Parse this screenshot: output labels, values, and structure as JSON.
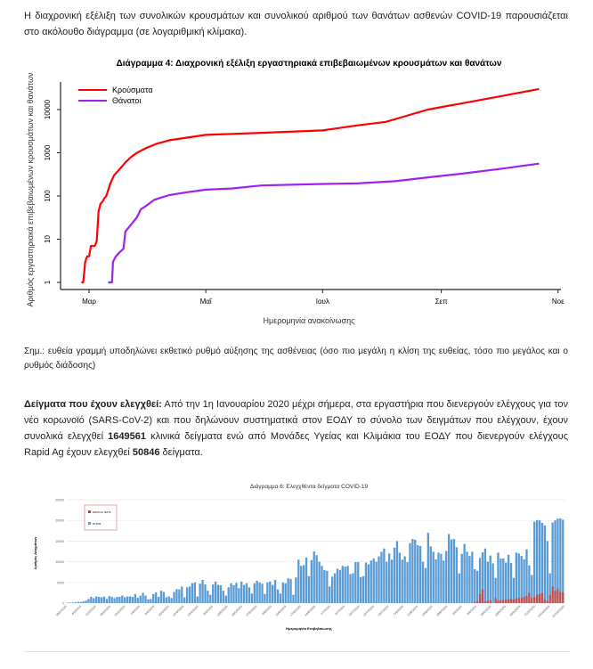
{
  "intro_text": "Η διαχρονική εξέλιξη των συνολικών κρουσμάτων και συνολικού αριθμού των θανάτων ασθενών COVID-19 παρουσιάζεται στο ακόλουθο διάγραμμα (σε λογαριθμική κλίμακα).",
  "note_text": "Σημ.: ευθεία γραμμή υποδηλώνει εκθετικό ρυθμό αύξησης της ασθένειας (όσο πιο μεγάλη η κλίση της ευθείας, τόσο πιο μεγάλος και ο ρυθμός διάδοσης)",
  "samples": {
    "heading": "Δείγματα που έχουν ελεγχθεί:",
    "text_1": " Από την 1η Ιανουαρίου 2020 μέχρι σήμερα, στα εργαστήρια που διενεργούν ελέγχους για τον νέο κορωνοϊό (SARS-CoV-2) και που δηλώνουν συστηματικά στον ΕΟΔΥ το σύνολο των δειγμάτων που ελέγχουν, έχουν συνολικά ελεγχθεί ",
    "pcr_total": "1649561",
    "text_2": " κλινικά δείγματα ενώ από Μονάδες Υγείας και Κλιμάκια του ΕΟΔΥ που διενεργούν ελέγχους Rapid Ag έχουν ελεγχθεί ",
    "rapid_total": "50846",
    "text_3": " δείγματα."
  },
  "chart_data": [
    {
      "type": "line",
      "title": "Διάγραμμα 4: Διαχρονική εξέλιξη εργαστηριακά επιβεβαιωμένων κρουσμάτων και θανάτων",
      "xlabel": "Ημερομηνία ανακοίνωσης",
      "ylabel": "Αριθμός εργαστηριακά επιβεβαιωμένων κρουσμάτων και θανάτων",
      "yscale": "log",
      "x_unit": "days since 1 March 2020",
      "x_ticks": [
        {
          "day": 0,
          "label": "Μαρ"
        },
        {
          "day": 61,
          "label": "Μαΐ"
        },
        {
          "day": 122,
          "label": "Ιουλ"
        },
        {
          "day": 184,
          "label": "Σεπ"
        },
        {
          "day": 245,
          "label": "Νοε"
        }
      ],
      "y_ticks": [
        {
          "value": 1,
          "label": "1"
        },
        {
          "value": 10,
          "label": "10"
        },
        {
          "value": 100,
          "label": "100"
        },
        {
          "value": 1000,
          "label": "1000"
        },
        {
          "value": 10000,
          "label": "10000"
        }
      ],
      "legend_position": "top-left",
      "series": [
        {
          "name": "Κρούσματα",
          "color": "#ff0000",
          "points": [
            [
              -4,
              1
            ],
            [
              -3,
              1
            ],
            [
              -2,
              3
            ],
            [
              -1,
              4
            ],
            [
              0,
              4
            ],
            [
              1,
              7
            ],
            [
              3,
              7
            ],
            [
              4,
              9
            ],
            [
              5,
              45
            ],
            [
              6,
              66
            ],
            [
              7,
              73
            ],
            [
              8,
              89
            ],
            [
              9,
              99
            ],
            [
              11,
              190
            ],
            [
              13,
              300
            ],
            [
              16,
              420
            ],
            [
              19,
              600
            ],
            [
              22,
              800
            ],
            [
              25,
              1000
            ],
            [
              30,
              1300
            ],
            [
              35,
              1600
            ],
            [
              42,
              1950
            ],
            [
              50,
              2200
            ],
            [
              61,
              2600
            ],
            [
              90,
              2900
            ],
            [
              122,
              3300
            ],
            [
              140,
              4300
            ],
            [
              155,
              5200
            ],
            [
              165,
              7000
            ],
            [
              177,
              10000
            ],
            [
              195,
              14000
            ],
            [
              214,
              20000
            ],
            [
              235,
              30000
            ]
          ]
        },
        {
          "name": "Θάνατοι",
          "color": "#a020f0",
          "points": [
            [
              10,
              1
            ],
            [
              12,
              1
            ],
            [
              12.5,
              3
            ],
            [
              14,
              4
            ],
            [
              16,
              5
            ],
            [
              18,
              6
            ],
            [
              19,
              15
            ],
            [
              22,
              22
            ],
            [
              25,
              32
            ],
            [
              27,
              49
            ],
            [
              30,
              60
            ],
            [
              34,
              81
            ],
            [
              37,
              90
            ],
            [
              42,
              105
            ],
            [
              50,
              120
            ],
            [
              61,
              140
            ],
            [
              75,
              150
            ],
            [
              90,
              175
            ],
            [
              122,
              190
            ],
            [
              140,
              195
            ],
            [
              160,
              220
            ],
            [
              177,
              270
            ],
            [
              195,
              330
            ],
            [
              214,
              420
            ],
            [
              235,
              560
            ]
          ]
        }
      ]
    },
    {
      "type": "bar",
      "title": "Διάγραμμα 6: Ελεγχθέντα δείγματα COVID-19",
      "xlabel": "Ημερομηνία Επιβεβαίωσης",
      "ylabel": "Αριθμός Δειγμάτων",
      "ylim": [
        0,
        25000
      ],
      "y_ticks": [
        0,
        5000,
        10000,
        15000,
        20000,
        25000
      ],
      "grid": true,
      "legend_position": "top-left",
      "x_tick_labels": [
        "26/2/2020",
        "4/3/2020",
        "11/3/2020",
        "18/3/2020",
        "25/3/2020",
        "1/4/2020",
        "8/4/2020",
        "15/4/2020",
        "22/4/2020",
        "29/4/2020",
        "6/5/2020",
        "13/5/2020",
        "20/5/2020",
        "27/5/2020",
        "3/6/2020",
        "10/6/2020",
        "17/6/2020",
        "24/6/2020",
        "1/7/2020",
        "8/7/2020",
        "15/7/2020",
        "22/7/2020",
        "29/7/2020",
        "5/8/2020",
        "12/8/2020",
        "19/8/2020",
        "26/8/2020",
        "2/9/2020",
        "9/9/2020",
        "16/9/2020",
        "23/9/2020",
        "30/9/2020",
        "7/10/2020",
        "14/10/2020",
        "21/10/2020"
      ],
      "series": [
        {
          "name": "RAPID AG TESTS",
          "color": "#e03030",
          "values": [
            300,
            400,
            2200,
            3300,
            400,
            600,
            700,
            0,
            1200,
            600,
            700,
            800,
            900,
            900,
            1000,
            900,
            1100,
            1200,
            1300,
            1500,
            1700,
            2500,
            1200,
            1500,
            2000,
            2200,
            2400,
            800,
            600,
            2000,
            4000,
            3000,
            3500,
            2700,
            2600
          ]
        },
        {
          "name": "RT-PCR",
          "color": "#5b9bd5",
          "values": [
            100,
            100,
            150,
            200,
            300,
            300,
            400,
            600,
            1000,
            1500,
            1200,
            1600,
            1500,
            1400,
            1600,
            1000,
            1700,
            1500,
            1200,
            1500,
            1500,
            1800,
            1400,
            1600,
            1600,
            1500,
            2200,
            1300,
            1800,
            2500,
            1800,
            900,
            1000,
            2200,
            2600,
            1500,
            3000,
            2700,
            1400,
            1600,
            1200,
            2700,
            3400,
            3300,
            4000,
            1400,
            3800,
            4000,
            4800,
            5000,
            1600,
            4700,
            5600,
            4500,
            3000,
            2000,
            4500,
            5200,
            4400,
            4300,
            3000,
            1800,
            3800,
            4800,
            4300,
            4900,
            3600,
            5200,
            4400,
            4800,
            3800,
            2300,
            4800,
            5400,
            5000,
            4700,
            2200,
            5000,
            5200,
            4400,
            5600,
            3300,
            2300,
            5000,
            4800,
            6000,
            5800,
            2000,
            6200,
            10500,
            9000,
            9200,
            11000,
            6500,
            10400,
            12500,
            11600,
            10000,
            9000,
            8000,
            7800,
            4000,
            6400,
            7200,
            8300,
            8000,
            9000,
            8800,
            9000,
            7000,
            7200,
            9900,
            9900,
            6300,
            6500,
            9800,
            9400,
            10300,
            10800,
            10000,
            11300,
            12400,
            13200,
            10000,
            12000,
            10500,
            13400,
            15000,
            12200,
            10500,
            11300,
            9900,
            14500,
            15500,
            15300,
            14000,
            13800,
            10000,
            8500,
            17000,
            13700,
            12400,
            10600,
            12200,
            11900,
            10300,
            12600,
            16700,
            15400,
            15500,
            13500,
            7200,
            11900,
            14300,
            12400,
            11400,
            12400,
            8200,
            7800,
            10900,
            12300,
            13200,
            10000,
            11500,
            9600,
            6100,
            12200,
            10800,
            10800,
            9800,
            11700,
            9700,
            6100,
            12200,
            12000,
            11400,
            10600,
            13000,
            9100,
            6800,
            19700,
            20100,
            20000,
            19400,
            18800,
            15000,
            7200,
            19500,
            20000,
            20400,
            20500,
            20200
          ]
        }
      ]
    }
  ]
}
